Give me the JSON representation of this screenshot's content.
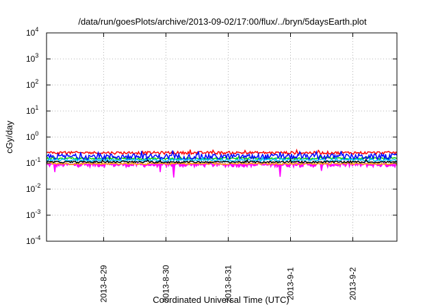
{
  "chart_data": {
    "type": "line",
    "title": "/data/run/goesPlots/archive/2013-09-02/17:00/flux/../bryn/5daysEarth.plot",
    "xlabel": "Coordinated Universal Time (UTC)",
    "ylabel": "cGy/day",
    "y_scale": "log",
    "ylim": [
      0.0001,
      10000
    ],
    "y_ticks": [
      {
        "base": "10",
        "exp": "-4"
      },
      {
        "base": "10",
        "exp": "-3"
      },
      {
        "base": "10",
        "exp": "-2"
      },
      {
        "base": "10",
        "exp": "-1"
      },
      {
        "base": "10",
        "exp": "0"
      },
      {
        "base": "10",
        "exp": "1"
      },
      {
        "base": "10",
        "exp": "2"
      },
      {
        "base": "10",
        "exp": "3"
      },
      {
        "base": "10",
        "exp": "4"
      }
    ],
    "xlim": [
      "2013-08-28T02:00",
      "2013-09-02T17:00"
    ],
    "x_ticks": [
      "2013-8-29",
      "2013-8-30",
      "2013-8-31",
      "2013-9-1",
      "2013-9-2"
    ],
    "x_tick_values": [
      "2013-08-29T00:00",
      "2013-08-30T00:00",
      "2013-08-31T00:00",
      "2013-09-01T00:00",
      "2013-09-02T00:00"
    ],
    "grid": true,
    "legend": "none",
    "series": [
      {
        "color": "#ff00ff",
        "level": 0.085,
        "noise": 0.18,
        "fill": true,
        "dips": [
          [
            "2013-08-28T05:00",
            0.045
          ],
          [
            "2013-08-29T22:00",
            0.045
          ],
          [
            "2013-08-30T03:00",
            0.028
          ],
          [
            "2013-08-31T20:00",
            0.03
          ],
          [
            "2013-09-01T12:00",
            0.05
          ]
        ]
      },
      {
        "color": "#ffa500",
        "level": 0.095,
        "noise": 0.08,
        "fill": false,
        "dips": []
      },
      {
        "color": "#ff0000",
        "level": 0.25,
        "noise": 0.12,
        "fill": false,
        "dips": []
      },
      {
        "color": "#00cc00",
        "level": 0.15,
        "noise": 0.08,
        "fill": false,
        "dips": []
      },
      {
        "color": "#0000ff",
        "level": 0.18,
        "noise": 0.25,
        "fill": false,
        "dips": []
      },
      {
        "color": "#00bfff",
        "level": 0.13,
        "noise": 0.1,
        "fill": false,
        "dips": []
      },
      {
        "color": "#000000",
        "level": 0.11,
        "noise": 0.08,
        "fill": false,
        "dips": []
      }
    ]
  }
}
